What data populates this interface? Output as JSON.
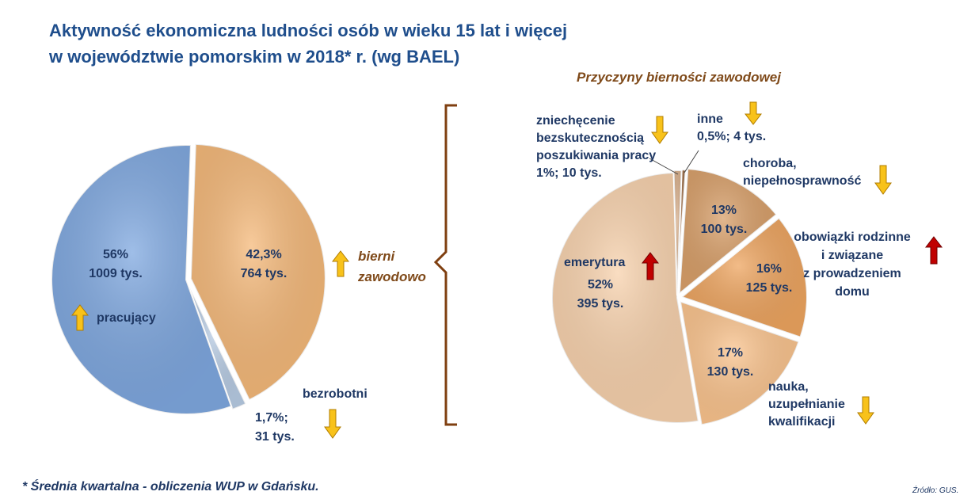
{
  "title_line1": "Aktywność ekonomiczna ludności osób w wieku 15 lat i więcej",
  "title_line2": "w województwie pomorskim w 2018* r. (wg BAEL)",
  "right_title": "Przyczyny bierności zawodowej",
  "footnote": "* Średnia kwartalna - obliczenia WUP w Gdańsku.",
  "source": "Źródło: GUS.",
  "left_labels": {
    "pracujacy_pct": "56%",
    "pracujacy_val": "1009 tys.",
    "pracujacy_name": "pracujący",
    "bierni_pct": "42,3%",
    "bierni_val": "764 tys.",
    "bierni_name_1": "bierni",
    "bierni_name_2": "zawodowo",
    "bezrobotni_name": "bezrobotni",
    "bezrobotni_pct": "1,7%;",
    "bezrobotni_val": "31 tys."
  },
  "right_labels": {
    "zniech_1": "zniechęcenie",
    "zniech_2": "bezskutecznością",
    "zniech_3": "poszukiwania pracy",
    "zniech_4": "1%;  10 tys.",
    "inne_1": "inne",
    "inne_2": "0,5%; 4 tys.",
    "choroba_1": "choroba,",
    "choroba_2": "niepełnosprawność",
    "choroba_pct": "13%",
    "choroba_val": "100 tys.",
    "obow_1": "obowiązki rodzinne",
    "obow_2": "i związane",
    "obow_3": "z prowadzeniem",
    "obow_4": "domu",
    "obow_pct": "16%",
    "obow_val": "125 tys.",
    "nauka_1": "nauka,",
    "nauka_2": "uzupełnianie",
    "nauka_3": "kwalifikacji",
    "nauka_pct": "17%",
    "nauka_val": "130 tys.",
    "emer_name": "emerytura",
    "emer_pct": "52%",
    "emer_val": "395 tys."
  },
  "chart_data": [
    {
      "type": "pie",
      "title": "",
      "slices": [
        {
          "name": "pracujący",
          "percent": 56,
          "value_tys": 1009,
          "trend": "up",
          "color": "#7fa8e0"
        },
        {
          "name": "bierni zawodowo",
          "percent": 42.3,
          "value_tys": 764,
          "trend": "up",
          "color": "#f5b97a"
        },
        {
          "name": "bezrobotni",
          "percent": 1.7,
          "value_tys": 31,
          "trend": "down",
          "color": "#b8cce4"
        }
      ]
    },
    {
      "type": "pie",
      "title": "Przyczyny bierności zawodowej",
      "slices": [
        {
          "name": "zniechęcenie bezskutecznością poszukiwania pracy",
          "percent": 1,
          "value_tys": 10,
          "trend": "down",
          "color": "#d9b08c"
        },
        {
          "name": "inne",
          "percent": 0.5,
          "value_tys": 4,
          "trend": "down",
          "color": "#a0714b"
        },
        {
          "name": "choroba, niepełnosprawność",
          "percent": 13,
          "value_tys": 100,
          "trend": "down",
          "color": "#d9a06a"
        },
        {
          "name": "obowiązki rodzinne i związane z prowadzeniem domu",
          "percent": 16,
          "value_tys": 125,
          "trend": "up",
          "color": "#eea560"
        },
        {
          "name": "nauka, uzupełnianie kwalifikacji",
          "percent": 17,
          "value_tys": 130,
          "trend": "down",
          "color": "#fbc48e"
        },
        {
          "name": "emerytura",
          "percent": 52,
          "value_tys": 395,
          "trend": "up",
          "color": "#f8d2ad"
        }
      ]
    }
  ]
}
